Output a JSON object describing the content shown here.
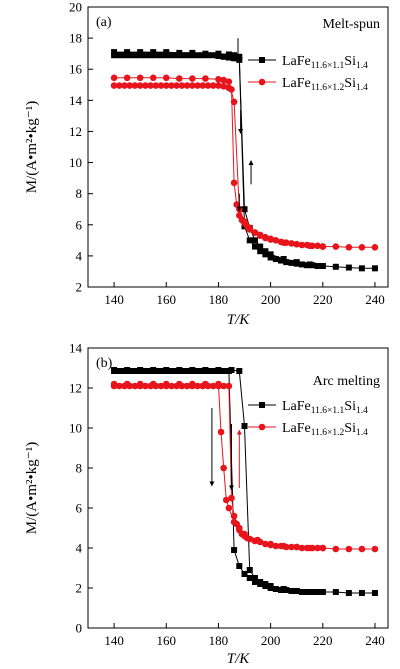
{
  "chart_data": [
    {
      "type": "line",
      "panel_label": "(a)",
      "annotation": "Melt-spun",
      "xlabel": "T/K",
      "ylabel": "M/(A•m²•kg⁻¹)",
      "xlim": [
        130,
        245
      ],
      "ylim": [
        2,
        20
      ],
      "xticks": [
        140,
        160,
        180,
        200,
        220,
        240
      ],
      "yticks": [
        2,
        4,
        6,
        8,
        10,
        12,
        14,
        16,
        18,
        20
      ],
      "legend_position": "top-right",
      "series": [
        {
          "name": "LaFe11.6×1.1Si1.4",
          "legend_base": "LaFe",
          "legend_sub1": "11.6×1.1",
          "legend_mid": "Si",
          "legend_sub2": "1.4",
          "color": "#000000",
          "marker": "square",
          "cooling": {
            "x": [
              140,
              142,
              144,
              146,
              148,
              150,
              152,
              154,
              156,
              158,
              160,
              162,
              164,
              166,
              168,
              170,
              172,
              174,
              176,
              178,
              180,
              182,
              184,
              186,
              188,
              190,
              192,
              194,
              196,
              198,
              200,
              202,
              204,
              206,
              208,
              210,
              212,
              214,
              216,
              218,
              220
            ],
            "y": [
              16.9,
              16.9,
              16.9,
              16.9,
              16.9,
              16.9,
              16.9,
              16.9,
              16.9,
              16.9,
              16.9,
              16.9,
              16.9,
              16.9,
              16.9,
              16.9,
              16.9,
              16.9,
              16.9,
              16.9,
              16.85,
              16.8,
              16.75,
              16.7,
              16.6,
              5.9,
              5.0,
              4.6,
              4.3,
              4.1,
              3.9,
              3.8,
              3.7,
              3.6,
              3.55,
              3.5,
              3.45,
              3.4,
              3.4,
              3.35,
              3.35
            ]
          },
          "heating": {
            "x": [
              140,
              145,
              150,
              155,
              160,
              165,
              170,
              175,
              180,
              184,
              186,
              188,
              190,
              192,
              194,
              196,
              198,
              200,
              205,
              210,
              215,
              220,
              225,
              230,
              235,
              240
            ],
            "y": [
              17.1,
              17.1,
              17.1,
              17.1,
              17.1,
              17.05,
              17.05,
              17.0,
              17.0,
              16.95,
              16.9,
              16.8,
              7.0,
              5.8,
              5.0,
              4.6,
              4.3,
              4.1,
              3.8,
              3.6,
              3.45,
              3.35,
              3.3,
              3.25,
              3.2,
              3.2
            ]
          }
        },
        {
          "name": "LaFe11.6×1.2Si1.4",
          "legend_base": "LaFe",
          "legend_sub1": "11.6×1.2",
          "legend_mid": "Si",
          "legend_sub2": "1.4",
          "color": "#e8141b",
          "marker": "circle",
          "cooling": {
            "x": [
              140,
              142,
              144,
              146,
              148,
              150,
              152,
              154,
              156,
              158,
              160,
              162,
              164,
              166,
              168,
              170,
              172,
              174,
              176,
              178,
              180,
              182,
              184,
              185,
              186,
              187,
              188,
              189,
              190,
              191,
              192,
              194,
              196,
              198,
              200,
              202,
              204,
              206,
              208,
              210,
              212,
              214,
              216,
              218,
              220
            ],
            "y": [
              14.95,
              14.95,
              14.95,
              14.95,
              14.95,
              14.95,
              14.95,
              14.95,
              14.95,
              14.95,
              14.95,
              14.95,
              14.95,
              14.95,
              14.95,
              14.95,
              14.95,
              14.95,
              14.95,
              14.95,
              14.95,
              14.9,
              14.8,
              14.7,
              8.7,
              7.3,
              6.6,
              6.3,
              6.1,
              5.9,
              5.7,
              5.5,
              5.35,
              5.2,
              5.1,
              5.0,
              4.9,
              4.85,
              4.8,
              4.75,
              4.7,
              4.7,
              4.65,
              4.65,
              4.6
            ]
          },
          "heating": {
            "x": [
              140,
              145,
              150,
              155,
              160,
              165,
              170,
              175,
              180,
              182,
              184,
              186,
              188,
              190,
              192,
              194,
              196,
              198,
              200,
              205,
              210,
              215,
              220,
              225,
              230,
              235,
              240
            ],
            "y": [
              15.45,
              15.45,
              15.45,
              15.45,
              15.45,
              15.4,
              15.4,
              15.4,
              15.35,
              15.3,
              15.2,
              13.9,
              7.0,
              6.2,
              5.8,
              5.5,
              5.3,
              5.15,
              5.05,
              4.85,
              4.75,
              4.65,
              4.6,
              4.6,
              4.55,
              4.55,
              4.55
            ]
          }
        }
      ],
      "arrows": [
        {
          "x": 187.5,
          "y_from": 18.0,
          "y_to": 16.6,
          "direction": "down"
        },
        {
          "x": 188.5,
          "y_from": 13.4,
          "y_to": 12.0,
          "direction": "down"
        },
        {
          "x": 192.5,
          "y_from": 8.6,
          "y_to": 10.0,
          "direction": "up"
        },
        {
          "x": 188.0,
          "y_from": 8.0,
          "y_to": 7.0,
          "direction": "down"
        }
      ]
    },
    {
      "type": "line",
      "panel_label": "(b)",
      "annotation": "Arc melting",
      "xlabel": "T/K",
      "ylabel": "M/(A•m²•kg⁻¹)",
      "xlim": [
        130,
        245
      ],
      "ylim": [
        0,
        14
      ],
      "xticks": [
        140,
        160,
        180,
        200,
        220,
        240
      ],
      "yticks": [
        0,
        2,
        4,
        6,
        8,
        10,
        12,
        14
      ],
      "legend_position": "top-right",
      "series": [
        {
          "name": "LaFe11.6×1.1Si1.4",
          "legend_base": "LaFe",
          "legend_sub1": "11.6×1.1",
          "legend_mid": "Si",
          "legend_sub2": "1.4",
          "color": "#000000",
          "marker": "square",
          "cooling": {
            "x": [
              140,
              142,
              144,
              146,
              148,
              150,
              152,
              154,
              156,
              158,
              160,
              162,
              164,
              166,
              168,
              170,
              172,
              174,
              176,
              178,
              180,
              182,
              184,
              186,
              188,
              190,
              192,
              194,
              196,
              198,
              200,
              202,
              204,
              206,
              208,
              210,
              212,
              214,
              216,
              218,
              220
            ],
            "y": [
              12.85,
              12.85,
              12.85,
              12.85,
              12.85,
              12.85,
              12.85,
              12.85,
              12.85,
              12.85,
              12.85,
              12.85,
              12.85,
              12.85,
              12.85,
              12.85,
              12.85,
              12.85,
              12.85,
              12.85,
              12.85,
              12.85,
              12.85,
              3.9,
              3.1,
              2.7,
              2.5,
              2.3,
              2.2,
              2.1,
              2.0,
              1.95,
              1.9,
              1.9,
              1.85,
              1.85,
              1.8,
              1.8,
              1.8,
              1.8,
              1.8
            ]
          },
          "heating": {
            "x": [
              140,
              145,
              150,
              155,
              160,
              165,
              170,
              175,
              180,
              185,
              188,
              190,
              192,
              194,
              196,
              198,
              200,
              205,
              210,
              215,
              220,
              225,
              230,
              235,
              240
            ],
            "y": [
              12.9,
              12.9,
              12.9,
              12.9,
              12.9,
              12.9,
              12.9,
              12.9,
              12.9,
              12.9,
              12.85,
              10.1,
              2.9,
              2.5,
              2.3,
              2.2,
              2.1,
              1.95,
              1.85,
              1.8,
              1.8,
              1.8,
              1.75,
              1.75,
              1.75
            ]
          }
        },
        {
          "name": "LaFe11.6×1.2Si1.4",
          "legend_base": "LaFe",
          "legend_sub1": "11.6×1.2",
          "legend_mid": "Si",
          "legend_sub2": "1.4",
          "color": "#e8141b",
          "marker": "circle",
          "cooling": {
            "x": [
              140,
              142,
              144,
              146,
              148,
              150,
              152,
              154,
              156,
              158,
              160,
              162,
              164,
              166,
              168,
              170,
              172,
              174,
              176,
              178,
              180,
              182,
              184,
              185,
              186,
              187,
              188,
              189,
              190,
              191,
              192,
              194,
              196,
              198,
              200,
              202,
              204,
              206,
              208,
              210,
              212,
              214,
              216,
              218,
              220
            ],
            "y": [
              12.1,
              12.1,
              12.1,
              12.1,
              12.1,
              12.1,
              12.1,
              12.1,
              12.1,
              12.1,
              12.1,
              12.1,
              12.1,
              12.1,
              12.1,
              12.1,
              12.1,
              12.1,
              12.1,
              12.1,
              12.1,
              12.1,
              12.1,
              6.5,
              5.6,
              5.2,
              4.9,
              4.7,
              4.6,
              4.5,
              4.45,
              4.35,
              4.3,
              4.2,
              4.15,
              4.1,
              4.1,
              4.05,
              4.05,
              4.05,
              4.0,
              4.0,
              4.0,
              4.0,
              4.0
            ]
          },
          "heating": {
            "x": [
              140,
              145,
              150,
              155,
              160,
              165,
              170,
              175,
              180,
              181,
              182,
              183,
              184,
              186,
              188,
              190,
              195,
              200,
              205,
              210,
              215,
              220,
              225,
              230,
              235,
              240
            ],
            "y": [
              12.2,
              12.2,
              12.2,
              12.2,
              12.2,
              12.2,
              12.2,
              12.2,
              12.2,
              9.8,
              8.0,
              6.4,
              6.0,
              5.3,
              5.0,
              4.7,
              4.4,
              4.2,
              4.1,
              4.05,
              4.0,
              4.0,
              3.95,
              3.95,
              3.95,
              3.95
            ]
          }
        }
      ],
      "arrows": [
        {
          "x": 177.5,
          "y_from": 11.0,
          "y_to": 7.2,
          "direction": "down"
        },
        {
          "x": 185.0,
          "y_from": 10.2,
          "y_to": 7.0,
          "direction": "down"
        },
        {
          "x": 188.0,
          "y_from": 7.0,
          "y_to": 9.8,
          "direction": "up"
        }
      ]
    }
  ]
}
